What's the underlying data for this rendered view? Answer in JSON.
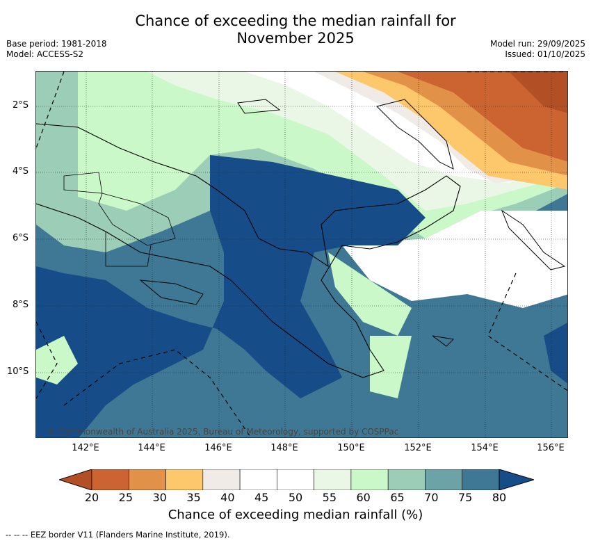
{
  "title_line1": "Chance of exceeding the median rainfall for",
  "title_line2": "November 2025",
  "meta_left": {
    "base_period": "Base period: 1981-2018",
    "model": "Model: ACCESS-S2"
  },
  "meta_right": {
    "model_run": "Model run: 29/09/2025",
    "issued": "Issued: 01/10/2025"
  },
  "axes": {
    "lat_labels": [
      "2°S",
      "4°S",
      "6°S",
      "8°S",
      "10°S"
    ],
    "lon_labels": [
      "142°E",
      "144°E",
      "146°E",
      "148°E",
      "150°E",
      "152°E",
      "154°E",
      "156°E"
    ]
  },
  "credit": "© Commonwealth of Australia 2025, Bureau of Meteorology, supported by COSPPac",
  "colorbar": {
    "ticks": [
      "20",
      "25",
      "30",
      "35",
      "40",
      "45",
      "50",
      "55",
      "60",
      "65",
      "70",
      "75",
      "80"
    ],
    "colors": [
      "#b34f25",
      "#cc6432",
      "#e29148",
      "#fdc86b",
      "#f1ebe7",
      "#ffffff",
      "#ffffff",
      "#eaf6e6",
      "#cbf8c8",
      "#9bcdb7",
      "#6ca3a6",
      "#3f7894",
      "#164d88"
    ],
    "label": "Chance of exceeding median rainfall (%)"
  },
  "legend_footer": "-- -- -- EEZ border V11 (Flanders Marine Institute, 2019)."
}
